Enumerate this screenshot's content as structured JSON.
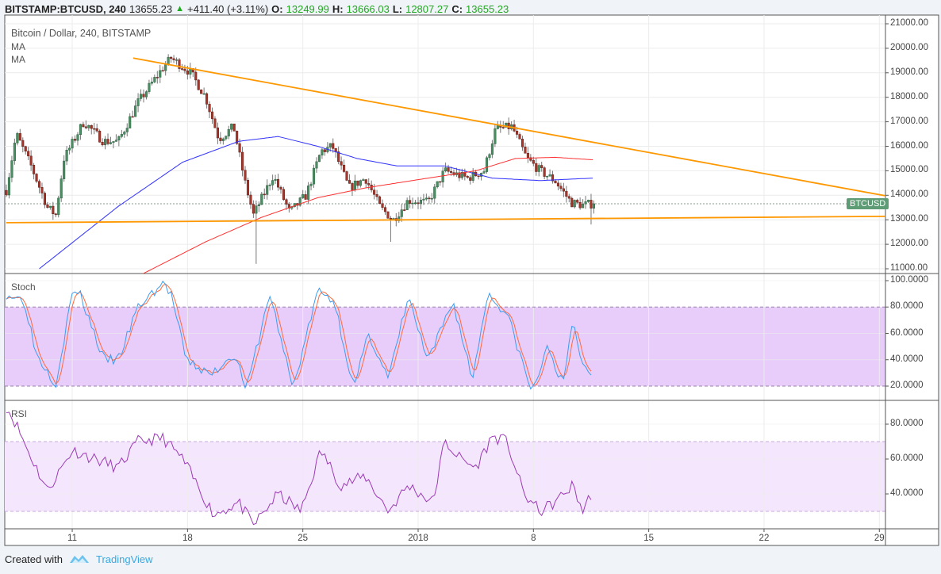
{
  "header": {
    "symbol": "BITSTAMP:BTCUSD, 240",
    "last": "13655.23",
    "change": "+411.40 (+3.11%)",
    "o_label": "O:",
    "o": "13249.99",
    "h_label": "H:",
    "h": "13666.03",
    "l_label": "L:",
    "l": "12807.27",
    "c_label": "C:",
    "c": "13655.23"
  },
  "legend": {
    "title": "Bitcoin / Dollar, 240, BITSTAMP",
    "ma1": "MA",
    "ma2": "MA",
    "stoch": "Stoch",
    "rsi": "RSI"
  },
  "price_badge": "BTCUSD",
  "footer": {
    "created": "Created with",
    "brand": "TradingView"
  },
  "colors": {
    "up": "#4a8f63",
    "down": "#a8362b",
    "ma_fast": "#3030ff",
    "ma_slow": "#ff3030",
    "trend": "#ff9800",
    "stoch_k": "#3d9cf0",
    "stoch_d": "#ff6a3d",
    "rsi": "#9b3bb5"
  },
  "chart_data": {
    "type": "candlestick",
    "title": "Bitcoin / Dollar, 240, BITSTAMP",
    "time_unit": "days since Dec 7 2017",
    "x_ticks": [
      {
        "t": 4,
        "label": "11"
      },
      {
        "t": 11,
        "label": "18"
      },
      {
        "t": 18,
        "label": "25"
      },
      {
        "t": 25,
        "label": "2018"
      },
      {
        "t": 32,
        "label": "8"
      },
      {
        "t": 39,
        "label": "15"
      },
      {
        "t": 46,
        "label": "22"
      },
      {
        "t": 53,
        "label": "29"
      }
    ],
    "price_ticks": [
      "11000.00",
      "12000.00",
      "13000.00",
      "14000.00",
      "15000.00",
      "16000.00",
      "17000.00",
      "18000.00",
      "19000.00",
      "20000.00",
      "21000.00"
    ],
    "price_range": [
      11000,
      21000
    ],
    "last_price": 13655.23,
    "close_path": [
      [
        0,
        14200
      ],
      [
        0.6,
        16500
      ],
      [
        1.5,
        15200
      ],
      [
        2.5,
        13500
      ],
      [
        3.0,
        13200
      ],
      [
        3.5,
        15500
      ],
      [
        4.7,
        17000
      ],
      [
        5.9,
        16200
      ],
      [
        6.8,
        16200
      ],
      [
        8.0,
        17800
      ],
      [
        9.5,
        19200
      ],
      [
        10.0,
        19600
      ],
      [
        11.2,
        19000
      ],
      [
        12.1,
        18000
      ],
      [
        12.9,
        16300
      ],
      [
        13.8,
        16800
      ],
      [
        14.5,
        14500
      ],
      [
        15.0,
        13200
      ],
      [
        16.2,
        14800
      ],
      [
        17.2,
        13300
      ],
      [
        18.2,
        14000
      ],
      [
        19.1,
        15800
      ],
      [
        19.8,
        16000
      ],
      [
        20.8,
        14300
      ],
      [
        21.8,
        14700
      ],
      [
        22.7,
        13500
      ],
      [
        23.5,
        13000
      ],
      [
        24.4,
        13800
      ],
      [
        25.6,
        13700
      ],
      [
        26.6,
        15000
      ],
      [
        28.0,
        14700
      ],
      [
        29.0,
        15000
      ],
      [
        29.7,
        16700
      ],
      [
        30.7,
        16800
      ],
      [
        31.6,
        15500
      ],
      [
        32.4,
        15000
      ],
      [
        33.3,
        14600
      ],
      [
        34.3,
        13700
      ],
      [
        35.0,
        13600
      ],
      [
        35.6,
        13655
      ]
    ],
    "wick_extremes": [
      {
        "t": 15.2,
        "low": 11200
      },
      {
        "t": 23.3,
        "low": 12100
      },
      {
        "t": 35.5,
        "low": 12807
      }
    ],
    "ma_fast": [
      [
        2.0,
        11000
      ],
      [
        6.8,
        13550
      ],
      [
        10.7,
        15350
      ],
      [
        14.1,
        16200
      ],
      [
        16.5,
        16400
      ],
      [
        18.9,
        16000
      ],
      [
        21.3,
        15500
      ],
      [
        23.7,
        15200
      ],
      [
        26.6,
        15200
      ],
      [
        29.5,
        14700
      ],
      [
        32.4,
        14600
      ],
      [
        35.6,
        14700
      ]
    ],
    "ma_slow": [
      [
        8.3,
        10800
      ],
      [
        12.1,
        12100
      ],
      [
        15.5,
        13100
      ],
      [
        18.9,
        13900
      ],
      [
        21.8,
        14300
      ],
      [
        25.6,
        14700
      ],
      [
        28.5,
        15000
      ],
      [
        30.9,
        15500
      ],
      [
        33.3,
        15550
      ],
      [
        35.6,
        15450
      ]
    ],
    "trendlines": [
      {
        "from": [
          7.7,
          19600
        ],
        "to": [
          53.6,
          13950
        ]
      },
      {
        "from": [
          0,
          12880
        ],
        "to": [
          53.6,
          13140
        ]
      }
    ],
    "stoch": {
      "ticks": [
        "20.0000",
        "40.0000",
        "60.0000",
        "80.0000",
        "100.0000"
      ],
      "bands": [
        20,
        80
      ],
      "k": [
        [
          0,
          90
        ],
        [
          1.1,
          85
        ],
        [
          1.8,
          45
        ],
        [
          3.0,
          22
        ],
        [
          4.0,
          90
        ],
        [
          4.4,
          92
        ],
        [
          5.2,
          65
        ],
        [
          5.9,
          40
        ],
        [
          6.8,
          40
        ],
        [
          8.0,
          80
        ],
        [
          9.5,
          98
        ],
        [
          10.0,
          90
        ],
        [
          10.9,
          40
        ],
        [
          12.4,
          28
        ],
        [
          13.8,
          45
        ],
        [
          14.6,
          18
        ],
        [
          16.0,
          90
        ],
        [
          17.4,
          18
        ],
        [
          18.9,
          92
        ],
        [
          19.9,
          85
        ],
        [
          21.1,
          18
        ],
        [
          22.0,
          60
        ],
        [
          23.2,
          25
        ],
        [
          24.4,
          88
        ],
        [
          25.6,
          38
        ],
        [
          27.1,
          85
        ],
        [
          28.3,
          25
        ],
        [
          29.2,
          90
        ],
        [
          30.4,
          75
        ],
        [
          31.9,
          15
        ],
        [
          32.9,
          50
        ],
        [
          33.8,
          20
        ],
        [
          34.4,
          70
        ],
        [
          35.0,
          35
        ],
        [
          35.6,
          30
        ]
      ]
    },
    "rsi": {
      "ticks": [
        "40.0000",
        "60.0000",
        "80.0000"
      ],
      "bands": [
        30,
        70
      ],
      "values": [
        [
          0,
          90
        ],
        [
          0.6,
          80
        ],
        [
          1.3,
          65
        ],
        [
          2.5,
          42
        ],
        [
          4.0,
          65
        ],
        [
          5.4,
          60
        ],
        [
          6.8,
          55
        ],
        [
          8.0,
          70
        ],
        [
          9.5,
          72
        ],
        [
          10.7,
          60
        ],
        [
          12.6,
          28
        ],
        [
          14.1,
          35
        ],
        [
          15.0,
          22
        ],
        [
          16.5,
          40
        ],
        [
          17.9,
          30
        ],
        [
          19.1,
          65
        ],
        [
          20.3,
          45
        ],
        [
          21.8,
          50
        ],
        [
          23.2,
          30
        ],
        [
          24.4,
          45
        ],
        [
          25.9,
          35
        ],
        [
          26.6,
          70
        ],
        [
          27.6,
          60
        ],
        [
          28.5,
          55
        ],
        [
          29.5,
          73
        ],
        [
          30.4,
          70
        ],
        [
          31.4,
          40
        ],
        [
          32.4,
          30
        ],
        [
          33.3,
          35
        ],
        [
          34.4,
          45
        ],
        [
          35.0,
          30
        ],
        [
          35.6,
          42
        ]
      ]
    }
  }
}
